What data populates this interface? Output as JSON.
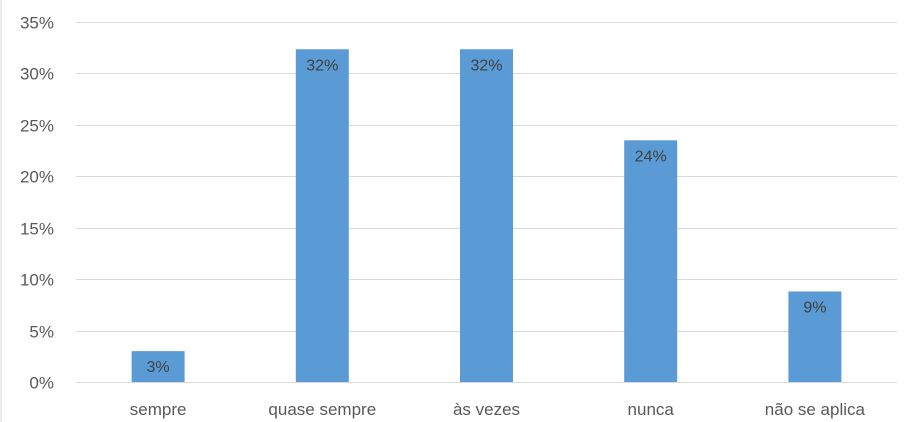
{
  "chart_data": {
    "type": "bar",
    "categories": [
      "sempre",
      "quase sempre",
      "às vezes",
      "nunca",
      "não se aplica"
    ],
    "values": [
      3,
      32.35,
      32.35,
      23.5,
      8.8
    ],
    "data_labels": [
      "3%",
      "32%",
      "32%",
      "24%",
      "9%"
    ],
    "y_tick_labels": [
      "0%",
      "5%",
      "10%",
      "15%",
      "20%",
      "25%",
      "30%",
      "35%"
    ],
    "ylim": [
      0,
      35
    ],
    "y_step": 5,
    "grid": true,
    "legend": "none",
    "bar_color": "#5B9BD5",
    "grid_color": "#D9D9D9"
  }
}
